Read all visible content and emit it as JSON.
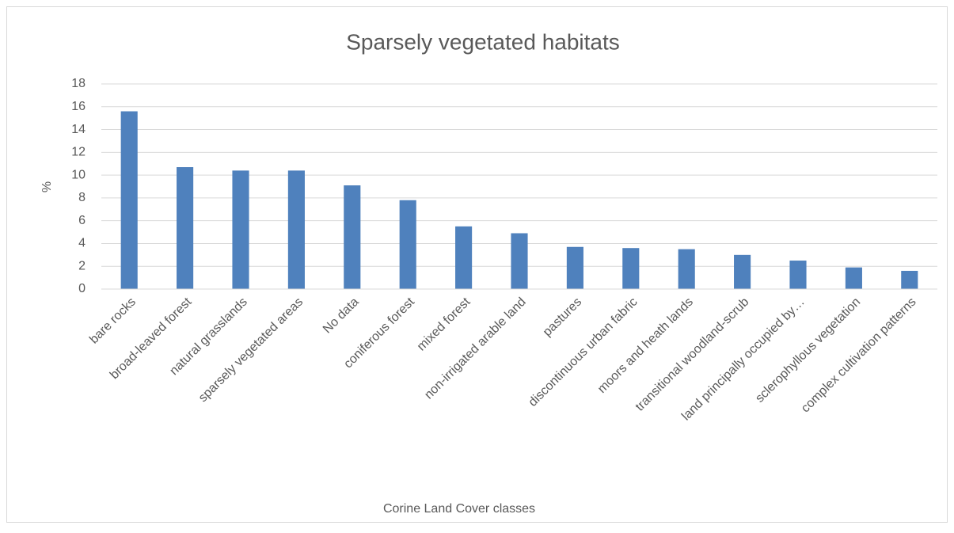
{
  "chart_data": {
    "type": "bar",
    "title": "Sparsely vegetated habitats",
    "x_label": "Corine Land Cover classes",
    "y_label": "%",
    "categories": [
      "bare rocks",
      "broad-leaved forest",
      "natural grasslands",
      "sparsely vegetated areas",
      "No data",
      "coniferous forest",
      "mixed forest",
      "non-irrigated arable land",
      "pastures",
      "discontinuous urban fabric",
      "moors and heath lands",
      "transitional woodland-scrub",
      "land principally occupied by…",
      "sclerophyllous vegetation",
      "complex cultivation patterns"
    ],
    "values": [
      15.6,
      10.7,
      10.4,
      10.4,
      9.1,
      7.8,
      5.5,
      4.9,
      3.7,
      3.6,
      3.5,
      3.0,
      2.5,
      1.9,
      1.6
    ],
    "color": "#4f81bd",
    "ylim": [
      0,
      18
    ],
    "yticks": [
      0,
      2,
      4,
      6,
      8,
      10,
      12,
      14,
      16,
      18
    ],
    "grid": true
  }
}
